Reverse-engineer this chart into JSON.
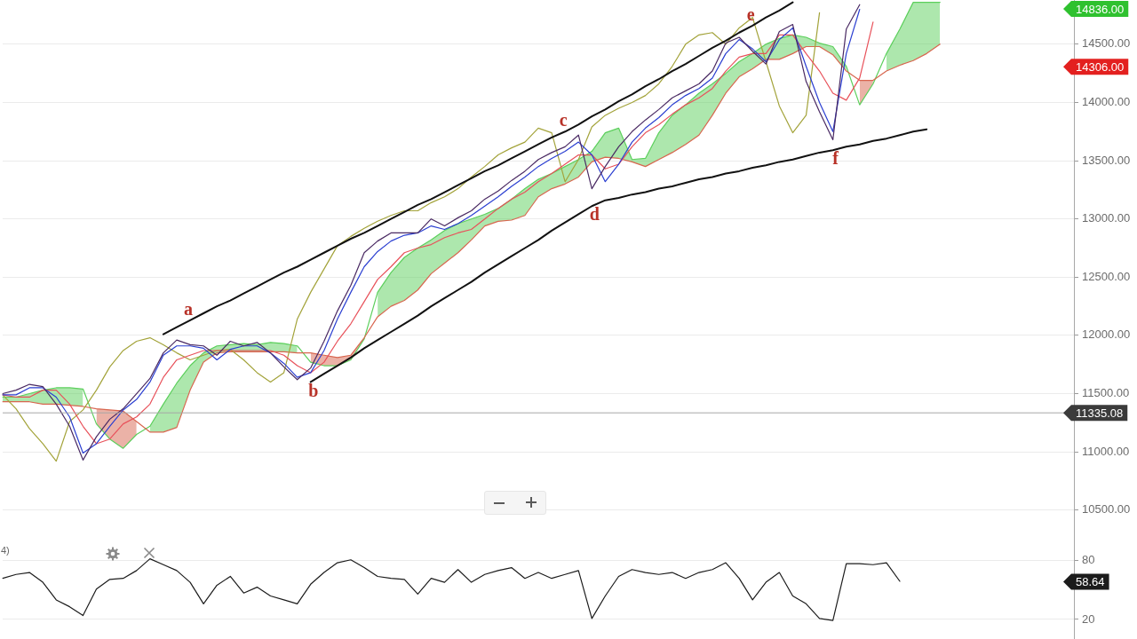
{
  "chart_data": [
    {
      "type": "line",
      "categories": [
        null,
        null,
        null,
        null,
        null,
        null,
        null,
        null,
        null,
        null,
        null,
        null,
        null,
        null,
        null,
        null,
        null,
        null,
        null,
        null,
        null,
        null,
        null,
        null,
        null,
        null,
        null,
        null,
        null,
        null,
        null,
        null,
        null,
        null,
        null,
        null,
        null,
        null,
        null,
        null,
        null,
        null,
        null,
        null,
        null,
        null,
        null,
        null,
        null,
        null,
        null,
        null,
        null,
        null,
        null,
        null,
        null,
        null,
        null,
        null,
        null,
        null,
        null,
        null,
        null,
        null,
        null,
        null,
        null,
        null,
        null,
        null,
        null,
        null,
        null,
        null,
        null,
        null,
        null,
        null,
        null
      ],
      "series": [
        {
          "color": "#5ccf5c",
          "values": [
            11470,
            11470,
            11500,
            11530,
            11550,
            11550,
            11540,
            11240,
            11110,
            11030,
            11150,
            11220,
            11410,
            11590,
            11740,
            11850,
            11910,
            11920,
            11930,
            11920,
            11940,
            11930,
            11910,
            11770,
            11740,
            11740,
            11790,
            11970,
            12370,
            12540,
            12670,
            12750,
            12820,
            12900,
            12960,
            13000,
            13040,
            13090,
            13170,
            13260,
            13340,
            13390,
            13450,
            13510,
            13580,
            13740,
            13780,
            13510,
            13520,
            13740,
            13890,
            13980,
            14080,
            14160,
            14250,
            14350,
            14420,
            14500,
            14550,
            14580,
            14560,
            14510,
            14480,
            14310,
            13980,
            14160,
            14420,
            14630,
            14860,
            14860,
            14860,
            null,
            null,
            null,
            null,
            null,
            null,
            null,
            null,
            null,
            null
          ],
          "lower": [
            11430,
            11430,
            11430,
            11410,
            11410,
            11400,
            11390,
            null,
            null,
            null,
            null,
            11170,
            11170,
            11210,
            11530,
            11770,
            11850,
            11860,
            11860,
            11860,
            11860,
            11860,
            11850,
            null,
            null,
            null,
            null,
            null,
            12160,
            12250,
            12300,
            12390,
            12530,
            12620,
            12710,
            12820,
            12940,
            12980,
            12990,
            13030,
            13190,
            13260,
            13300,
            13360,
            13490,
            13530,
            13520,
            13490,
            13450,
            13510,
            13570,
            13640,
            13720,
            13890,
            14080,
            14220,
            14290,
            14370,
            14370,
            14420,
            14480,
            14480,
            14410,
            14270,
            null,
            null,
            14270,
            14320,
            14360,
            14420,
            14500,
            null,
            null,
            null,
            null,
            null,
            null,
            null,
            null,
            null,
            null
          ],
          "upper": [
            11470,
            11470,
            11500,
            11530,
            11550,
            11550,
            11540,
            null,
            null,
            null,
            null,
            11220,
            11410,
            11590,
            11740,
            11850,
            11910,
            11920,
            11930,
            11920,
            11940,
            11930,
            11910,
            null,
            null,
            null,
            null,
            null,
            12370,
            12540,
            12670,
            12750,
            12820,
            12900,
            12960,
            13000,
            13040,
            13090,
            13170,
            13260,
            13340,
            13390,
            13450,
            13510,
            13580,
            13740,
            13780,
            13510,
            13520,
            13740,
            13890,
            13980,
            14080,
            14160,
            14250,
            14350,
            14420,
            14500,
            14550,
            14580,
            14560,
            14510,
            14480,
            14310,
            null,
            null,
            14420,
            14630,
            14860,
            14860,
            14860,
            null,
            null,
            null,
            null,
            null,
            null,
            null,
            null,
            null,
            null
          ]
        },
        {
          "color": "#d8664f",
          "values": [
            11430,
            11430,
            11430,
            11410,
            11410,
            11400,
            11390,
            11370,
            11360,
            11350,
            11260,
            11170,
            11170,
            11210,
            11530,
            11770,
            11850,
            11860,
            11860,
            11860,
            11860,
            11860,
            11850,
            11850,
            11830,
            11810,
            11830,
            11980,
            12160,
            12250,
            12300,
            12390,
            12530,
            12620,
            12710,
            12820,
            12940,
            12980,
            12990,
            13030,
            13190,
            13260,
            13300,
            13360,
            13490,
            13530,
            13520,
            13490,
            13450,
            13510,
            13570,
            13640,
            13720,
            13890,
            14080,
            14220,
            14290,
            14370,
            14370,
            14420,
            14480,
            14480,
            14410,
            14270,
            14190,
            14190,
            14270,
            14320,
            14360,
            14420,
            14500,
            null,
            null,
            null,
            null,
            null,
            null,
            null,
            null,
            null,
            null
          ],
          "lower": [
            null,
            null,
            null,
            null,
            null,
            null,
            null,
            11240,
            11110,
            11030,
            11150,
            null,
            null,
            null,
            null,
            null,
            null,
            null,
            null,
            null,
            null,
            null,
            null,
            11770,
            11740,
            11740,
            11790,
            11970,
            null,
            null,
            null,
            null,
            null,
            null,
            null,
            null,
            null,
            null,
            null,
            null,
            null,
            null,
            null,
            null,
            null,
            null,
            null,
            null,
            null,
            null,
            null,
            null,
            null,
            null,
            null,
            null,
            null,
            null,
            null,
            null,
            null,
            null,
            null,
            null,
            13980,
            14160,
            null,
            null,
            null,
            null,
            null,
            null,
            null,
            null,
            null,
            null,
            null,
            null,
            null,
            null,
            null
          ],
          "upper": [
            null,
            null,
            null,
            null,
            null,
            null,
            null,
            11370,
            11360,
            11350,
            11260,
            null,
            null,
            null,
            null,
            null,
            null,
            null,
            null,
            null,
            null,
            null,
            null,
            11850,
            11830,
            11810,
            11830,
            11980,
            null,
            null,
            null,
            null,
            null,
            null,
            null,
            null,
            null,
            null,
            null,
            null,
            null,
            null,
            null,
            null,
            null,
            null,
            null,
            null,
            null,
            null,
            null,
            null,
            null,
            null,
            null,
            null,
            null,
            null,
            null,
            null,
            null,
            null,
            null,
            null,
            14190,
            14190,
            null,
            null,
            null,
            null,
            null,
            null,
            null,
            null,
            null,
            null,
            null,
            null,
            null,
            null,
            null
          ]
        },
        {
          "color": "#a3a33a",
          "values": [
            11490,
            11370,
            11200,
            11070,
            10920,
            11260,
            11360,
            11530,
            11730,
            11870,
            11950,
            11980,
            11920,
            11850,
            11790,
            11830,
            11870,
            11880,
            11790,
            11680,
            11600,
            11680,
            12140,
            12370,
            12570,
            12770,
            12850,
            12920,
            12980,
            13030,
            13070,
            13070,
            13140,
            13190,
            13260,
            13360,
            13450,
            13550,
            13610,
            13660,
            13780,
            13740,
            13320,
            13510,
            13790,
            13890,
            13950,
            14000,
            14060,
            14160,
            14310,
            14500,
            14580,
            14600,
            14500,
            14640,
            14730,
            14350,
            13970,
            13740,
            13890,
            14770,
            null,
            null,
            null,
            null,
            null,
            null,
            null,
            null,
            null,
            null,
            null,
            null,
            null,
            null,
            null,
            null,
            null,
            null,
            null
          ]
        },
        {
          "color": "#e8515a",
          "values": [
            11490,
            11470,
            11470,
            11530,
            11530,
            11410,
            11220,
            11070,
            11110,
            11240,
            11300,
            11410,
            11640,
            11790,
            11830,
            11870,
            11870,
            11870,
            11870,
            11870,
            11870,
            11830,
            11740,
            11680,
            11770,
            11950,
            12100,
            12290,
            12480,
            12590,
            12710,
            12750,
            12780,
            12840,
            12880,
            12910,
            13000,
            13090,
            13170,
            13230,
            13320,
            13390,
            13470,
            13550,
            13550,
            13430,
            13470,
            13620,
            13740,
            13810,
            13900,
            13980,
            14040,
            14120,
            14270,
            14390,
            14420,
            14420,
            14580,
            14580,
            14420,
            14270,
            14080,
            14020,
            14210,
            14690,
            null,
            null,
            null,
            null,
            null,
            null,
            null,
            null,
            null,
            null,
            null,
            null,
            null,
            null,
            null
          ]
        },
        {
          "color": "#2b3fd1",
          "values": [
            11490,
            11490,
            11550,
            11550,
            11470,
            11300,
            10990,
            11070,
            11220,
            11360,
            11450,
            11600,
            11830,
            11910,
            11910,
            11890,
            11790,
            11880,
            11910,
            11910,
            11850,
            11760,
            11640,
            11680,
            11870,
            12140,
            12370,
            12590,
            12720,
            12810,
            12860,
            12880,
            12940,
            12910,
            12960,
            13030,
            13110,
            13190,
            13280,
            13360,
            13450,
            13520,
            13580,
            13660,
            13550,
            13320,
            13470,
            13660,
            13780,
            13870,
            13980,
            14060,
            14120,
            14210,
            14420,
            14540,
            14460,
            14350,
            14540,
            14640,
            14310,
            14000,
            13750,
            14420,
            14800,
            null,
            null,
            null,
            null,
            null,
            null,
            null,
            null,
            null,
            null,
            null,
            null,
            null,
            null,
            null,
            null
          ]
        },
        {
          "color": "#4a2a63",
          "values": [
            11500,
            11530,
            11580,
            11560,
            11410,
            11220,
            10930,
            11130,
            11280,
            11370,
            11500,
            11630,
            11850,
            11960,
            11920,
            11910,
            11830,
            11950,
            11910,
            11940,
            11850,
            11730,
            11620,
            11720,
            11950,
            12210,
            12430,
            12710,
            12810,
            12880,
            12880,
            12880,
            13000,
            12940,
            13010,
            13070,
            13170,
            13240,
            13330,
            13410,
            13510,
            13570,
            13620,
            13720,
            13260,
            13450,
            13620,
            13750,
            13850,
            13940,
            14040,
            14100,
            14160,
            14270,
            14510,
            14560,
            14440,
            14330,
            14610,
            14670,
            14180,
            13920,
            13680,
            14630,
            14840,
            null,
            null,
            null,
            null,
            null,
            null,
            null,
            null,
            null,
            null,
            null,
            null,
            null,
            null,
            null,
            null
          ]
        },
        {
          "color": "#111111",
          "values": [
            null,
            null,
            null,
            null,
            null,
            null,
            null,
            null,
            null,
            null,
            null,
            null,
            12010,
            12070,
            12130,
            12190,
            12250,
            12300,
            12360,
            12420,
            12480,
            12540,
            12590,
            12650,
            12710,
            12770,
            12830,
            12880,
            12940,
            13000,
            13060,
            13120,
            13170,
            13230,
            13290,
            13350,
            13410,
            13460,
            13520,
            13580,
            13640,
            13700,
            13750,
            13810,
            13880,
            13940,
            14010,
            14070,
            14140,
            14200,
            14270,
            14330,
            14400,
            14470,
            14530,
            14600,
            14660,
            14730,
            14790,
            14860,
            null,
            null,
            null,
            null,
            null,
            null,
            null,
            null,
            null,
            null,
            null,
            null,
            null,
            null,
            null,
            null,
            null,
            null,
            null,
            null,
            null
          ],
          "value_labels": [
            null,
            null,
            null,
            null,
            null,
            null,
            null,
            null,
            null,
            null,
            null,
            null,
            null,
            null,
            "a",
            null,
            null,
            null,
            null,
            null,
            null,
            null,
            null,
            null,
            null,
            null,
            null,
            null,
            null,
            null,
            null,
            null,
            null,
            null,
            null,
            null,
            null,
            null,
            null,
            null,
            null,
            null,
            "c",
            null,
            null,
            null,
            null,
            null,
            null,
            null,
            null,
            null,
            null,
            null,
            null,
            null,
            "e",
            null,
            null,
            null,
            null,
            null,
            null,
            null,
            null,
            null,
            null,
            null,
            null,
            null,
            null,
            null,
            null,
            null,
            null,
            null,
            null,
            null,
            null,
            null,
            null
          ]
        },
        {
          "color": "#111111",
          "values": [
            null,
            null,
            null,
            null,
            null,
            null,
            null,
            null,
            null,
            null,
            null,
            null,
            null,
            null,
            null,
            null,
            null,
            null,
            null,
            null,
            null,
            null,
            null,
            11600,
            11670,
            11740,
            11810,
            11890,
            11960,
            12030,
            12100,
            12170,
            12250,
            12320,
            12390,
            12460,
            12540,
            12610,
            12680,
            12750,
            12820,
            12900,
            12970,
            13040,
            13110,
            13160,
            13180,
            13210,
            13230,
            13260,
            13280,
            13310,
            13340,
            13360,
            13390,
            13410,
            13440,
            13460,
            13490,
            13510,
            13540,
            13570,
            13590,
            13620,
            13640,
            13670,
            13690,
            13720,
            13750,
            13770,
            null,
            null,
            null,
            null,
            null,
            null,
            null,
            null,
            null,
            null,
            null
          ],
          "value_labels": [
            null,
            null,
            null,
            null,
            null,
            null,
            null,
            null,
            null,
            null,
            null,
            null,
            null,
            null,
            null,
            null,
            null,
            null,
            null,
            null,
            null,
            null,
            null,
            "b",
            null,
            null,
            null,
            null,
            null,
            null,
            null,
            null,
            null,
            null,
            null,
            null,
            null,
            null,
            null,
            null,
            null,
            null,
            null,
            null,
            "d",
            null,
            null,
            null,
            null,
            null,
            null,
            null,
            null,
            null,
            null,
            null,
            null,
            null,
            null,
            null,
            null,
            null,
            "f",
            null,
            null,
            null,
            null,
            null,
            null,
            null,
            null,
            null,
            null,
            null,
            null,
            null,
            null,
            null,
            null,
            null,
            null
          ]
        }
      ],
      "ylim": [
        10300,
        14880
      ],
      "yticks": [
        {
          "value": 10500,
          "label": "10500.00"
        },
        {
          "value": 11000,
          "label": "11000.00"
        },
        {
          "value": 11500,
          "label": "11500.00"
        },
        {
          "value": 12000,
          "label": "12000.00"
        },
        {
          "value": 12500,
          "label": "12500.00"
        },
        {
          "value": 13000,
          "label": "13000.00"
        },
        {
          "value": 13500,
          "label": "13500.00"
        },
        {
          "value": 14000,
          "label": "14000.00"
        },
        {
          "value": 14500,
          "label": "14500.00"
        }
      ],
      "grid": "y",
      "tick_labels": "y",
      "ref_lines": [
        {
          "axis": "y",
          "value": 11335.08,
          "label": "11335.08",
          "color": "#a6a6a6"
        }
      ],
      "annotations": [
        "14836.00",
        "14306.00"
      ]
    },
    {
      "type": "line",
      "categories": [
        null,
        null,
        null,
        null,
        null,
        null,
        null,
        null,
        null,
        null,
        null,
        null,
        null,
        null,
        null,
        null,
        null,
        null,
        null,
        null,
        null,
        null,
        null,
        null,
        null,
        null,
        null,
        null,
        null,
        null,
        null,
        null,
        null,
        null,
        null,
        null,
        null,
        null,
        null,
        null,
        null,
        null,
        null,
        null,
        null,
        null,
        null,
        null,
        null,
        null,
        null,
        null,
        null,
        null,
        null,
        null,
        null,
        null,
        null,
        null,
        null,
        null,
        null,
        null,
        null,
        null,
        null,
        null,
        null,
        null,
        null,
        null,
        null,
        null,
        null,
        null,
        null,
        null,
        null,
        null,
        null
      ],
      "values": [
        62,
        66,
        68,
        58,
        40,
        33,
        24,
        51,
        61,
        62,
        70,
        82,
        76,
        70,
        58,
        36,
        55,
        64,
        47,
        53,
        44,
        40,
        36,
        56,
        68,
        78,
        81,
        73,
        64,
        62,
        61,
        46,
        62,
        58,
        71,
        58,
        66,
        70,
        73,
        62,
        68,
        62,
        66,
        70,
        21,
        44,
        64,
        71,
        68,
        66,
        68,
        62,
        68,
        71,
        78,
        62,
        40,
        58,
        68,
        44,
        36,
        21,
        19,
        77,
        77,
        76,
        78,
        59,
        null,
        null,
        null,
        null,
        null,
        null,
        null,
        null,
        null,
        null,
        null,
        null,
        null
      ],
      "color": "#1c1c1c",
      "ylim": [
        0,
        108
      ],
      "yticks": [
        20,
        80
      ],
      "grid": "y",
      "tick_labels": "y",
      "annotations": [
        "4)",
        "58.64"
      ]
    }
  ]
}
